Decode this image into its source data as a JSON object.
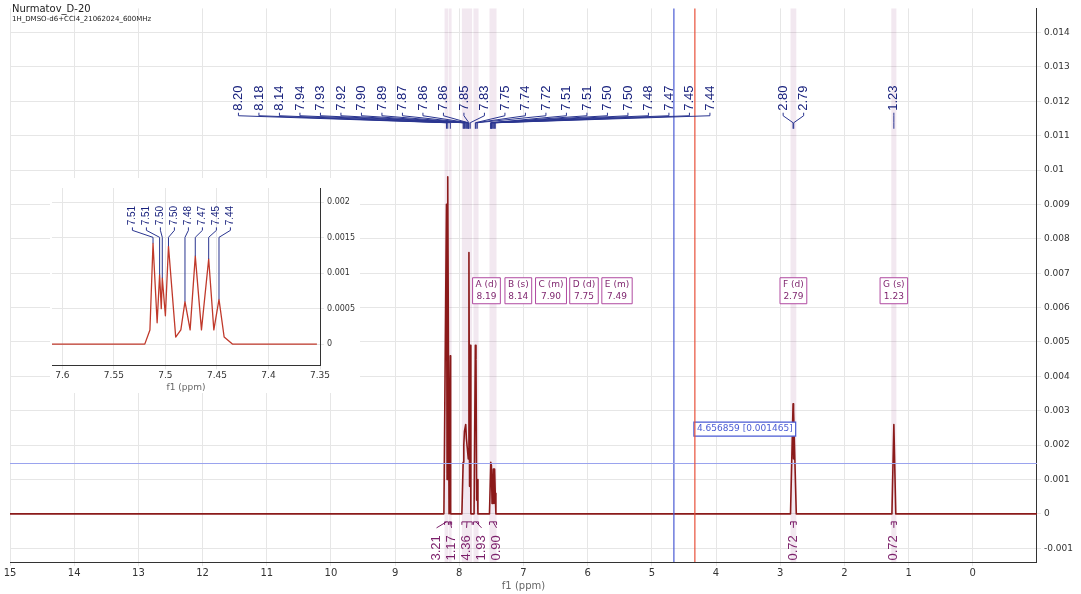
{
  "chart_data": [
    {
      "type": "line",
      "title": "Nurmatov_D-20",
      "subtitle": "1H_DMSO-d6+CCl4_21062024_600MHz",
      "xlabel": "f1 (ppm)",
      "xlim": [
        15,
        -1
      ],
      "xticks": [
        15,
        14,
        13,
        12,
        11,
        10,
        9,
        8,
        7,
        6,
        5,
        4,
        3,
        2,
        1,
        0
      ],
      "ylim": [
        -0.0014,
        0.0147
      ],
      "yticks": [
        -0.001,
        0.0,
        0.001,
        0.002,
        0.003,
        0.004,
        0.005,
        0.006,
        0.007,
        0.008,
        0.009,
        0.01,
        0.011,
        0.012,
        0.013,
        0.014
      ],
      "grid": true,
      "legend": false,
      "marker": "none",
      "series": [
        {
          "color": "#8b1a1a",
          "x": [
            15,
            8.24,
            8.2,
            8.19,
            8.18,
            8.16,
            8.145,
            8.14,
            8.135,
            7.96,
            7.94,
            7.93,
            7.92,
            7.9,
            7.89,
            7.87,
            7.86,
            7.85,
            7.84,
            7.83,
            7.82,
            7.77,
            7.75,
            7.74,
            7.73,
            7.72,
            7.71,
            7.53,
            7.51,
            7.5,
            7.49,
            7.48,
            7.47,
            7.46,
            7.45,
            7.44,
            7.43,
            2.84,
            2.8,
            2.795,
            2.79,
            2.75,
            1.26,
            1.23,
            1.2,
            -1
          ],
          "values": [
            0,
            0,
            0.009,
            0.001,
            0.0098,
            0,
            0,
            0.0046,
            0,
            0,
            0.0015,
            0.002,
            0.0024,
            0.0026,
            0.0022,
            0.0018,
            0.0016,
            0.0076,
            0.0008,
            0.0049,
            0,
            0,
            0.0049,
            0.0045,
            0.0004,
            0.001,
            0,
            0,
            0.0015,
            0.0014,
            0.0003,
            0.0007,
            0.0013,
            0.0003,
            0.0013,
            0.0006,
            0,
            0,
            0.0032,
            0.0016,
            0.003,
            0,
            0,
            0.0026,
            0,
            0
          ]
        }
      ],
      "ref_lines": [
        {
          "axis": "x",
          "value": 4.656859,
          "color": "#4a5bd4",
          "label": "4.656859 [0.001465]"
        },
        {
          "axis": "y",
          "value": 0.001465,
          "color": "#9aa3ee"
        },
        {
          "axis": "x",
          "value": 4.33,
          "color": "#e8503a"
        }
      ],
      "bands": [
        {
          "axis": "x",
          "from": 8.23,
          "to": 8.17,
          "label": "3.21",
          "color": "#7b1f6a"
        },
        {
          "axis": "x",
          "from": 8.16,
          "to": 8.12,
          "label": "1.17",
          "color": "#7b1f6a"
        },
        {
          "axis": "x",
          "from": 7.96,
          "to": 7.8,
          "label": "4.36",
          "color": "#7b1f6a"
        },
        {
          "axis": "x",
          "from": 7.78,
          "to": 7.7,
          "label": "1.93",
          "color": "#7b1f6a"
        },
        {
          "axis": "x",
          "from": 7.53,
          "to": 7.42,
          "label": "0.90",
          "color": "#7b1f6a"
        },
        {
          "axis": "x",
          "from": 2.84,
          "to": 2.75,
          "label": "0.72",
          "color": "#7b1f6a"
        },
        {
          "axis": "x",
          "from": 1.27,
          "to": 1.19,
          "label": "0.72",
          "color": "#7b1f6a"
        }
      ],
      "annotations": [
        {
          "text": "8.20",
          "x": 8.2,
          "y": 0.0112
        },
        {
          "text": "8.18",
          "x": 8.18,
          "y": 0.0112
        },
        {
          "text": "8.14",
          "x": 8.14,
          "y": 0.0112
        },
        {
          "text": "7.94",
          "x": 7.94,
          "y": 0.0112
        },
        {
          "text": "7.93",
          "x": 7.93,
          "y": 0.0112
        },
        {
          "text": "7.92",
          "x": 7.92,
          "y": 0.0112
        },
        {
          "text": "7.90",
          "x": 7.9,
          "y": 0.0112
        },
        {
          "text": "7.89",
          "x": 7.89,
          "y": 0.0112
        },
        {
          "text": "7.87",
          "x": 7.87,
          "y": 0.0112
        },
        {
          "text": "7.86",
          "x": 7.86,
          "y": 0.0112
        },
        {
          "text": "7.86",
          "x": 7.86,
          "y": 0.0112
        },
        {
          "text": "7.85",
          "x": 7.85,
          "y": 0.0112
        },
        {
          "text": "7.83",
          "x": 7.83,
          "y": 0.0112
        },
        {
          "text": "7.75",
          "x": 7.75,
          "y": 0.0112
        },
        {
          "text": "7.74",
          "x": 7.74,
          "y": 0.0112
        },
        {
          "text": "7.72",
          "x": 7.72,
          "y": 0.0112
        },
        {
          "text": "7.51",
          "x": 7.51,
          "y": 0.0112
        },
        {
          "text": "7.51",
          "x": 7.51,
          "y": 0.0112
        },
        {
          "text": "7.50",
          "x": 7.5,
          "y": 0.0112
        },
        {
          "text": "7.50",
          "x": 7.5,
          "y": 0.0112
        },
        {
          "text": "7.48",
          "x": 7.48,
          "y": 0.0112
        },
        {
          "text": "7.47",
          "x": 7.47,
          "y": 0.0112
        },
        {
          "text": "7.45",
          "x": 7.45,
          "y": 0.0112
        },
        {
          "text": "7.44",
          "x": 7.44,
          "y": 0.0112
        },
        {
          "text": "2.80",
          "x": 2.8,
          "y": 0.0112
        },
        {
          "text": "2.79",
          "x": 2.79,
          "y": 0.0112
        },
        {
          "text": "1.23",
          "x": 1.23,
          "y": 0.0112
        },
        "A (d) 8.19",
        "B (s) 8.14",
        "C (m) 7.90",
        "D (d) 7.75",
        "E (m) 7.49",
        "F (d) 2.79",
        "G (s) 1.23"
      ]
    },
    {
      "type": "line",
      "xlabel": "f1 (ppm)",
      "xlim": [
        7.61,
        7.35
      ],
      "xticks": [
        7.6,
        7.55,
        7.5,
        7.45,
        7.4,
        7.35
      ],
      "ylim": [
        -0.0003,
        0.0022
      ],
      "yticks": [
        0.0,
        0.0005,
        0.001,
        0.0015,
        0.002
      ],
      "grid": true,
      "legend": false,
      "marker": "none",
      "series": [
        {
          "color": "#c0392b",
          "x": [
            7.61,
            7.52,
            7.515,
            7.512,
            7.508,
            7.5056,
            7.504,
            7.503,
            7.5,
            7.497,
            7.49,
            7.485,
            7.481,
            7.476,
            7.471,
            7.465,
            7.458,
            7.453,
            7.448,
            7.443,
            7.435,
            7.353
          ],
          "values": [
            0,
            0,
            0.0002,
            0.00142,
            0.0003,
            0.00098,
            0.0005,
            0.00093,
            0.0004,
            0.00138,
            0.0001,
            0.0002,
            0.0006,
            0.0002,
            0.00124,
            0.0002,
            0.0012,
            0.0002,
            0.00063,
            0.0001,
            0,
            0
          ]
        }
      ],
      "annotations": [
        {
          "text": "7.51",
          "x": 7.512,
          "y": 0.00142
        },
        {
          "text": "7.51",
          "x": 7.5056,
          "y": 0.00098
        },
        {
          "text": "7.50",
          "x": 7.503,
          "y": 0.00093
        },
        {
          "text": "7.50",
          "x": 7.497,
          "y": 0.00138
        },
        {
          "text": "7.48",
          "x": 7.481,
          "y": 0.0006
        },
        {
          "text": "7.47",
          "x": 7.471,
          "y": 0.00124
        },
        {
          "text": "7.45",
          "x": 7.458,
          "y": 0.0012
        },
        {
          "text": "7.44",
          "x": 7.448,
          "y": 0.00063
        }
      ]
    }
  ]
}
